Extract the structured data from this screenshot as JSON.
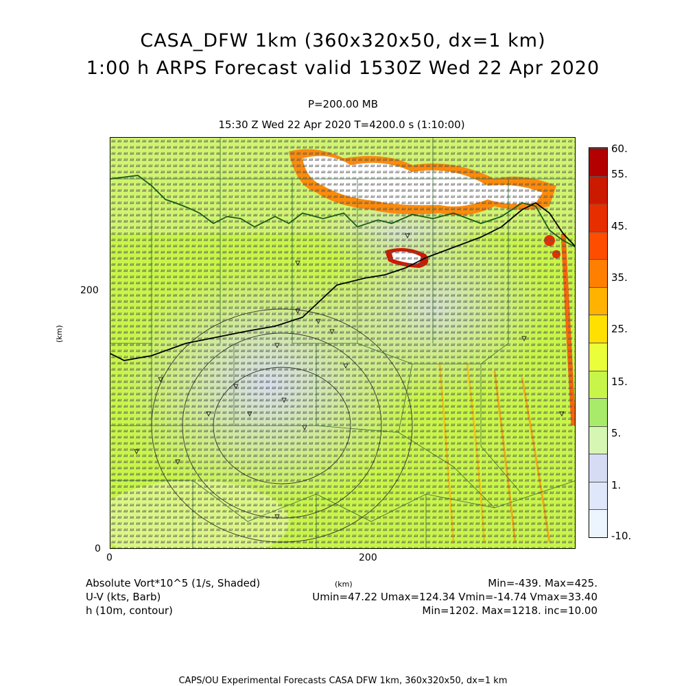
{
  "header": {
    "title_line1": "CASA_DFW 1km (360x320x50, dx=1 km)",
    "title_line2": "1:00 h ARPS Forecast valid 1530Z Wed 22 Apr 2020",
    "level": "P=200.00 MB",
    "time": "15:30 Z Wed 22 Apr 2020    T=4200.0 s (1:10:00)"
  },
  "axes": {
    "y_ticks": [
      "200",
      "0"
    ],
    "x_ticks": [
      "0",
      "200"
    ],
    "y_unit": "(km)",
    "x_unit": "(km)"
  },
  "colorbar": {
    "labels": [
      "60.",
      "55.",
      "45.",
      "35.",
      "25.",
      "15.",
      "5.",
      "1.",
      "-10."
    ],
    "colors": [
      "#b30000",
      "#cc1a00",
      "#e62e00",
      "#ff4d00",
      "#ff7f00",
      "#ffb300",
      "#ffe000",
      "#eaff3a",
      "#c8f54a",
      "#a8ea6a",
      "#d5f7b3",
      "#d7dcf5",
      "#dfe8fa",
      "#ecf4fd"
    ]
  },
  "footer": {
    "var1": "Absolute Vort*10^5 (1/s, Shaded)",
    "var2": "U-V (kts, Barb)",
    "var3": "h (10m, contour)",
    "stats1": "Min=-439. Max=425.",
    "stats2": "Umin=47.22 Umax=124.34 Vmin=-14.74 Vmax=33.40",
    "stats3": "Min=1202. Max=1218. inc=10.00",
    "credit": "CAPS/OU Experimental Forecasts   CASA DFW 1km, 360x320x50, dx=1 km"
  }
}
